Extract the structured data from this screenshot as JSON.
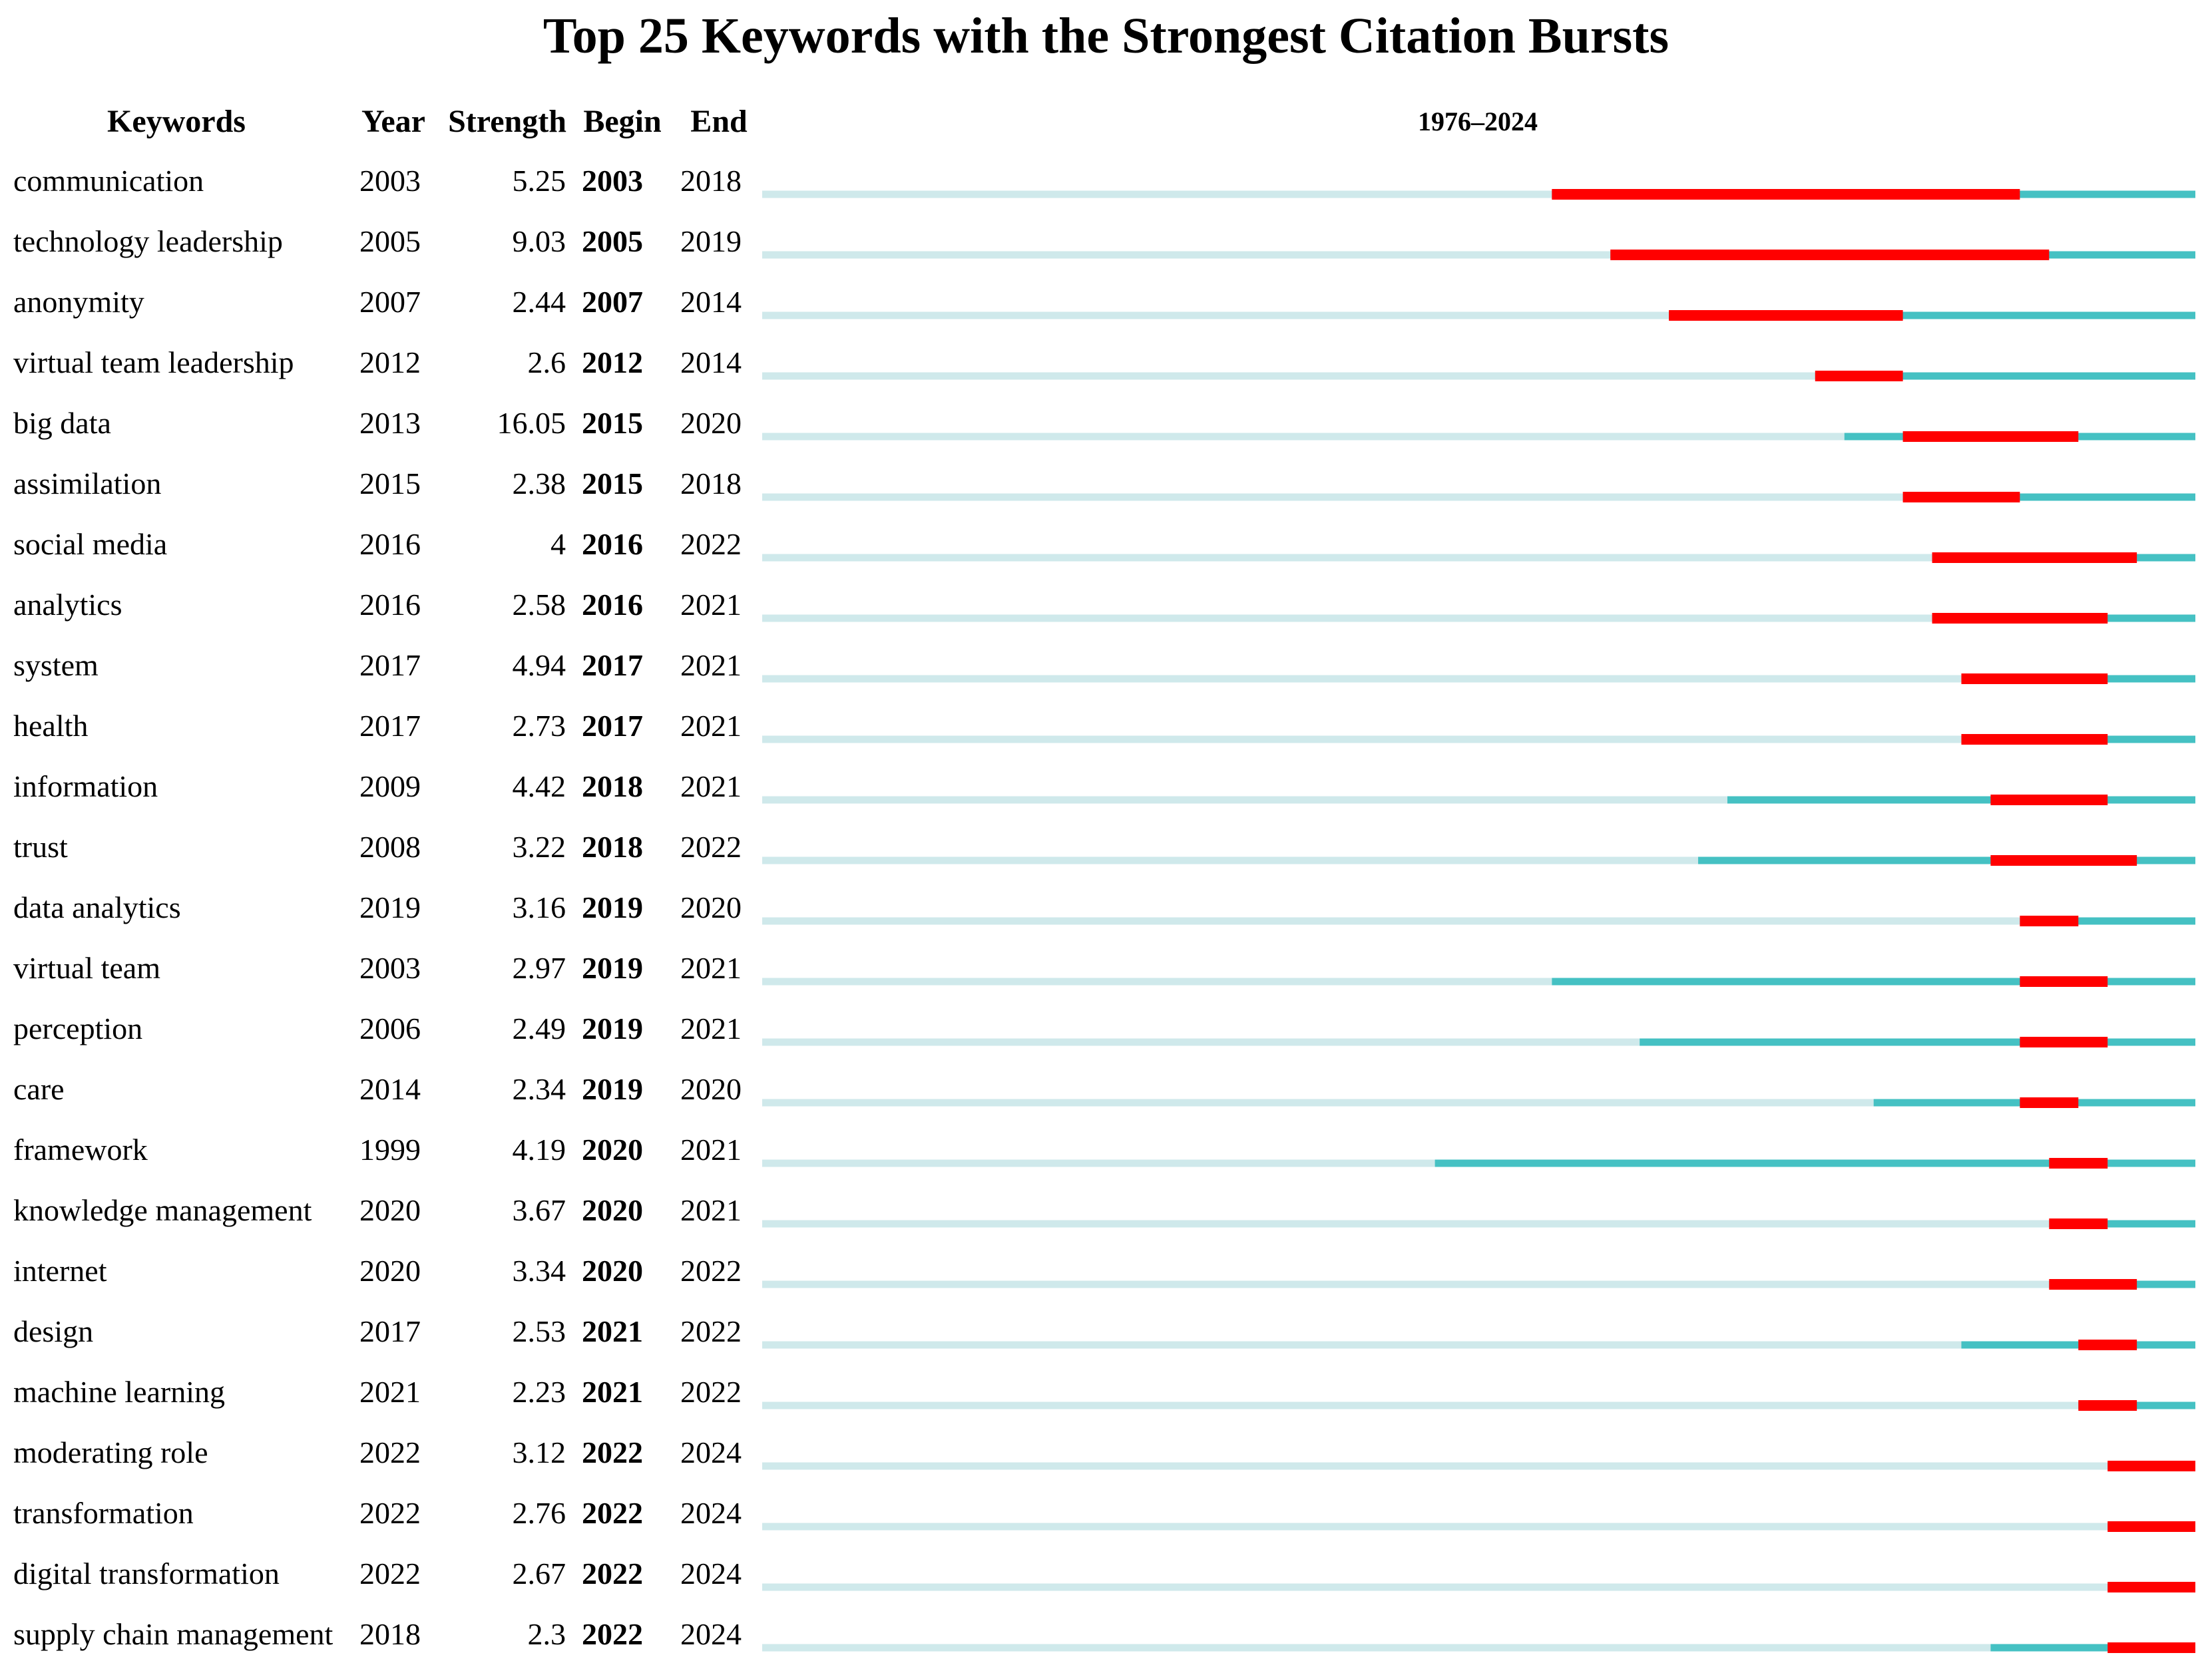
{
  "chart_data": {
    "type": "timeline",
    "title": "Top 25 Keywords with the Strongest Citation Bursts",
    "columns": [
      "Keywords",
      "Year",
      "Strength",
      "Begin",
      "End"
    ],
    "range_label": "1976–2024",
    "range": [
      1976,
      2024
    ],
    "colors": {
      "background_line": "#cfe9eb",
      "active_line": "#45c1c3",
      "burst": "#ff0000"
    },
    "rows": [
      {
        "keyword": "communication",
        "year": "2003",
        "strength": "5.25",
        "begin": "2003",
        "end": "2018"
      },
      {
        "keyword": "technology leadership",
        "year": "2005",
        "strength": "9.03",
        "begin": "2005",
        "end": "2019"
      },
      {
        "keyword": "anonymity",
        "year": "2007",
        "strength": "2.44",
        "begin": "2007",
        "end": "2014"
      },
      {
        "keyword": "virtual team leadership",
        "year": "2012",
        "strength": "2.6",
        "begin": "2012",
        "end": "2014"
      },
      {
        "keyword": "big data",
        "year": "2013",
        "strength": "16.05",
        "begin": "2015",
        "end": "2020"
      },
      {
        "keyword": "assimilation",
        "year": "2015",
        "strength": "2.38",
        "begin": "2015",
        "end": "2018"
      },
      {
        "keyword": "social media",
        "year": "2016",
        "strength": "4",
        "begin": "2016",
        "end": "2022"
      },
      {
        "keyword": "analytics",
        "year": "2016",
        "strength": "2.58",
        "begin": "2016",
        "end": "2021"
      },
      {
        "keyword": "system",
        "year": "2017",
        "strength": "4.94",
        "begin": "2017",
        "end": "2021"
      },
      {
        "keyword": "health",
        "year": "2017",
        "strength": "2.73",
        "begin": "2017",
        "end": "2021"
      },
      {
        "keyword": "information",
        "year": "2009",
        "strength": "4.42",
        "begin": "2018",
        "end": "2021"
      },
      {
        "keyword": "trust",
        "year": "2008",
        "strength": "3.22",
        "begin": "2018",
        "end": "2022"
      },
      {
        "keyword": "data analytics",
        "year": "2019",
        "strength": "3.16",
        "begin": "2019",
        "end": "2020"
      },
      {
        "keyword": "virtual team",
        "year": "2003",
        "strength": "2.97",
        "begin": "2019",
        "end": "2021"
      },
      {
        "keyword": "perception",
        "year": "2006",
        "strength": "2.49",
        "begin": "2019",
        "end": "2021"
      },
      {
        "keyword": "care",
        "year": "2014",
        "strength": "2.34",
        "begin": "2019",
        "end": "2020"
      },
      {
        "keyword": "framework",
        "year": "1999",
        "strength": "4.19",
        "begin": "2020",
        "end": "2021"
      },
      {
        "keyword": "knowledge management",
        "year": "2020",
        "strength": "3.67",
        "begin": "2020",
        "end": "2021"
      },
      {
        "keyword": "internet",
        "year": "2020",
        "strength": "3.34",
        "begin": "2020",
        "end": "2022"
      },
      {
        "keyword": "design",
        "year": "2017",
        "strength": "2.53",
        "begin": "2021",
        "end": "2022"
      },
      {
        "keyword": "machine learning",
        "year": "2021",
        "strength": "2.23",
        "begin": "2021",
        "end": "2022"
      },
      {
        "keyword": "moderating role",
        "year": "2022",
        "strength": "3.12",
        "begin": "2022",
        "end": "2024"
      },
      {
        "keyword": "transformation",
        "year": "2022",
        "strength": "2.76",
        "begin": "2022",
        "end": "2024"
      },
      {
        "keyword": "digital transformation",
        "year": "2022",
        "strength": "2.67",
        "begin": "2022",
        "end": "2024"
      },
      {
        "keyword": "supply chain management",
        "year": "2018",
        "strength": "2.3",
        "begin": "2022",
        "end": "2024"
      }
    ]
  }
}
